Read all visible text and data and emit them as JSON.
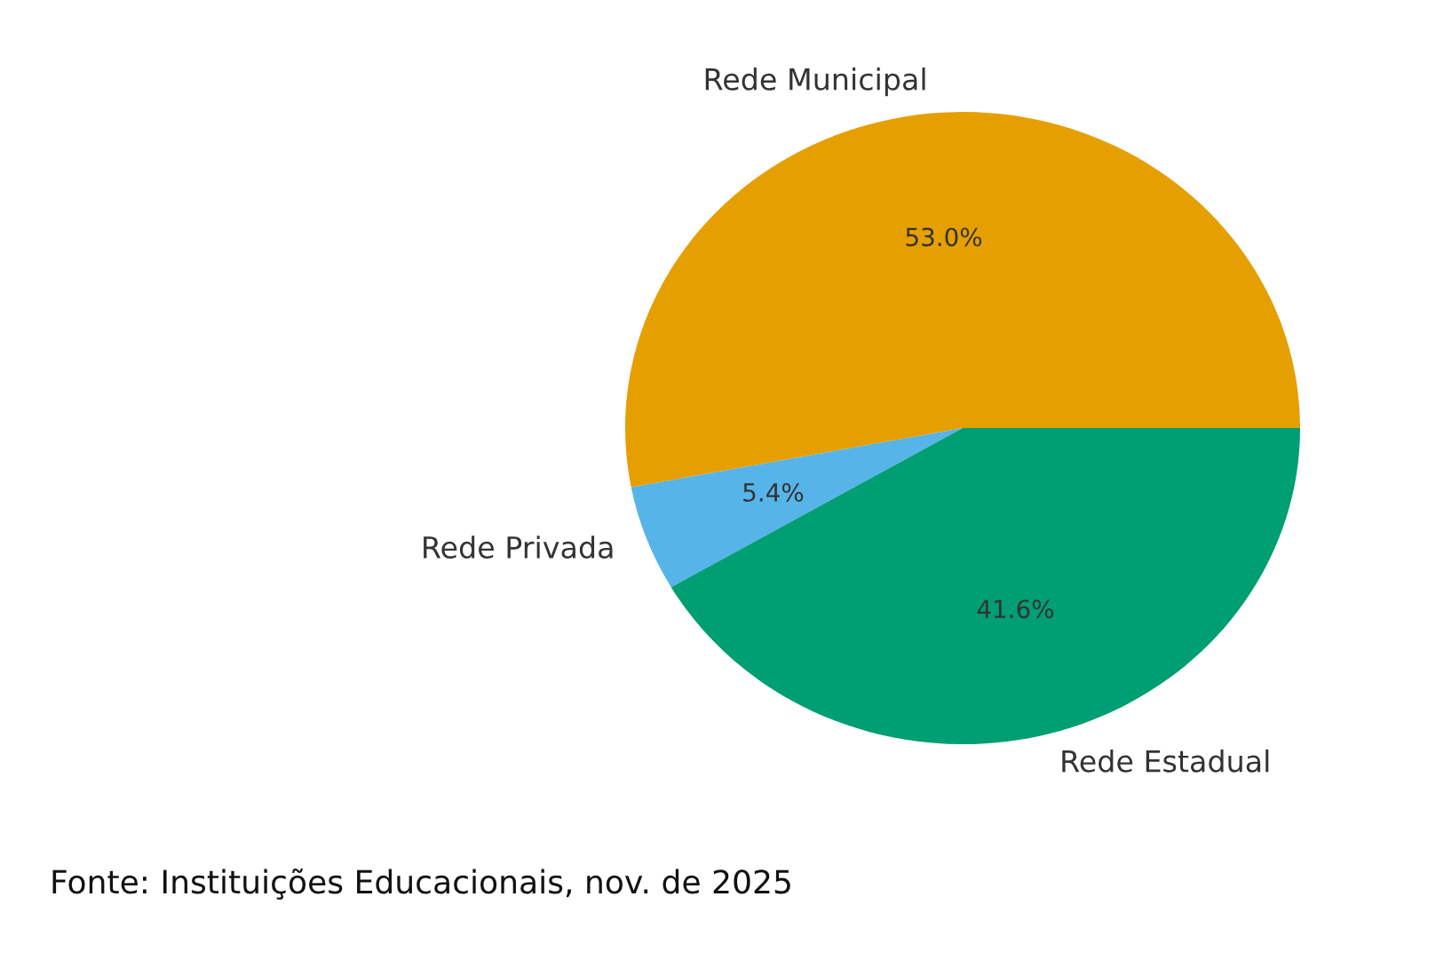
{
  "chart_data": {
    "type": "pie",
    "categories": [
      "Rede Municipal",
      "Rede Privada",
      "Rede Estadual"
    ],
    "values": [
      53.0,
      5.4,
      41.6
    ],
    "value_labels": [
      "53.0%",
      "5.4%",
      "41.6%"
    ],
    "colors": [
      "#e69f00",
      "#56b4e9",
      "#009e73"
    ],
    "annotations": [
      "Fonte: Instituições Educacionais, nov. de 2025"
    ]
  }
}
